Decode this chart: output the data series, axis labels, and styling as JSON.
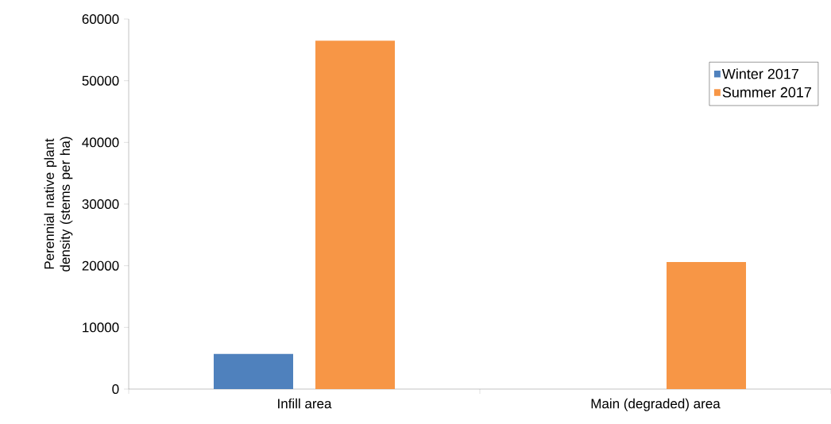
{
  "chart_data": {
    "type": "bar",
    "ylabel": "Perennial native plant density (stems per ha)",
    "categories": [
      "Infill area",
      "Main (degraded) area"
    ],
    "series": [
      {
        "name": "Winter 2017",
        "color": "#4f81bd",
        "values": [
          5700,
          0
        ]
      },
      {
        "name": "Summer 2017",
        "color": "#f79646",
        "values": [
          56500,
          20600
        ]
      }
    ],
    "ylim": [
      0,
      60000
    ],
    "yticks": [
      0,
      10000,
      20000,
      30000,
      40000,
      50000,
      60000
    ],
    "grid": false,
    "legend": "top right"
  }
}
